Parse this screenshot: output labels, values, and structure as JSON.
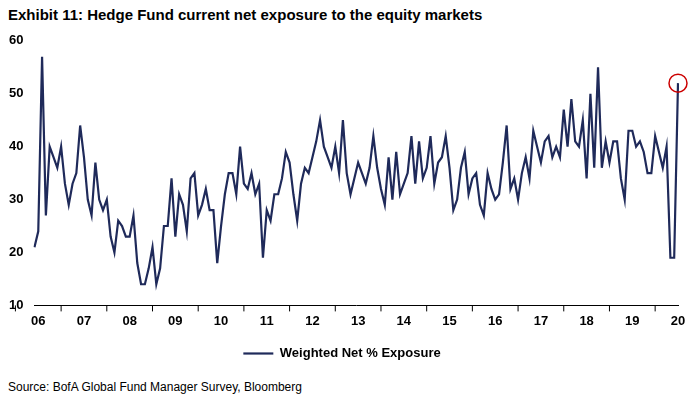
{
  "chart_data": {
    "type": "line",
    "title": "Exhibit 11: Hedge Fund current net exposure to the equity markets",
    "source": "Source: BofA Global Fund Manager Survey, Bloomberg",
    "categories": [
      null,
      "06",
      null,
      null,
      null,
      null,
      null,
      null,
      null,
      null,
      null,
      null,
      null,
      "07",
      null,
      null,
      null,
      null,
      null,
      null,
      null,
      null,
      null,
      null,
      null,
      "08",
      null,
      null,
      null,
      null,
      null,
      null,
      null,
      null,
      null,
      null,
      null,
      "09",
      null,
      null,
      null,
      null,
      null,
      null,
      null,
      null,
      null,
      null,
      null,
      "10",
      null,
      null,
      null,
      null,
      null,
      null,
      null,
      null,
      null,
      null,
      null,
      "11",
      null,
      null,
      null,
      null,
      null,
      null,
      null,
      null,
      null,
      null,
      null,
      "12",
      null,
      null,
      null,
      null,
      null,
      null,
      null,
      null,
      null,
      null,
      null,
      "13",
      null,
      null,
      null,
      null,
      null,
      null,
      null,
      null,
      null,
      null,
      null,
      "14",
      null,
      null,
      null,
      null,
      null,
      null,
      null,
      null,
      null,
      null,
      null,
      "15",
      null,
      null,
      null,
      null,
      null,
      null,
      null,
      null,
      null,
      null,
      null,
      "16",
      null,
      null,
      null,
      null,
      null,
      null,
      null,
      null,
      null,
      null,
      null,
      "17",
      null,
      null,
      null,
      null,
      null,
      null,
      null,
      null,
      null,
      null,
      null,
      "18",
      null,
      null,
      null,
      null,
      null,
      null,
      null,
      null,
      null,
      null,
      null,
      "19",
      null,
      null,
      null,
      null,
      null,
      null,
      null,
      null,
      null,
      null,
      null,
      "20"
    ],
    "series": [
      {
        "name": "Weighted Net % Exposure",
        "color": "#1f2a5a",
        "values": [
          21,
          24,
          57,
          27,
          40,
          38,
          36,
          40,
          33,
          29,
          33,
          35,
          44,
          38,
          30,
          27,
          37,
          30,
          28,
          30,
          23,
          20,
          26,
          25,
          23,
          23,
          27,
          18,
          14,
          14,
          17,
          21,
          14,
          17,
          25,
          25,
          34,
          23,
          31,
          29,
          24,
          34,
          35,
          27,
          29,
          32,
          28,
          28,
          18,
          25,
          31,
          35,
          35,
          31,
          40,
          33,
          32,
          35,
          31,
          33,
          19,
          28,
          26,
          31,
          31,
          34,
          39,
          37,
          31,
          26,
          33,
          36,
          35,
          38,
          41,
          45,
          40,
          38,
          36,
          40,
          35,
          45,
          35,
          31,
          34,
          37,
          35,
          33,
          36,
          42,
          36,
          32,
          29,
          38,
          30,
          39,
          31,
          33,
          35,
          42,
          33,
          41,
          34,
          36,
          42,
          33,
          37,
          38,
          42,
          36,
          28,
          30,
          36,
          39,
          31,
          34,
          35,
          29,
          27,
          35,
          32,
          30,
          31,
          37,
          44,
          32,
          34,
          30,
          35,
          38,
          34,
          43,
          40,
          37,
          41,
          42,
          38,
          40,
          38,
          47,
          40,
          49,
          41,
          40,
          45,
          34,
          50,
          36,
          55,
          36,
          41,
          37,
          41,
          41,
          34,
          30,
          43,
          43,
          40,
          41,
          39,
          35,
          35,
          42,
          39,
          36,
          40,
          19,
          19,
          52
        ]
      }
    ],
    "ylim": [
      10,
      60
    ],
    "yticks": [
      10,
      20,
      30,
      40,
      50,
      60
    ],
    "grid": false,
    "legend": "bottom"
  }
}
